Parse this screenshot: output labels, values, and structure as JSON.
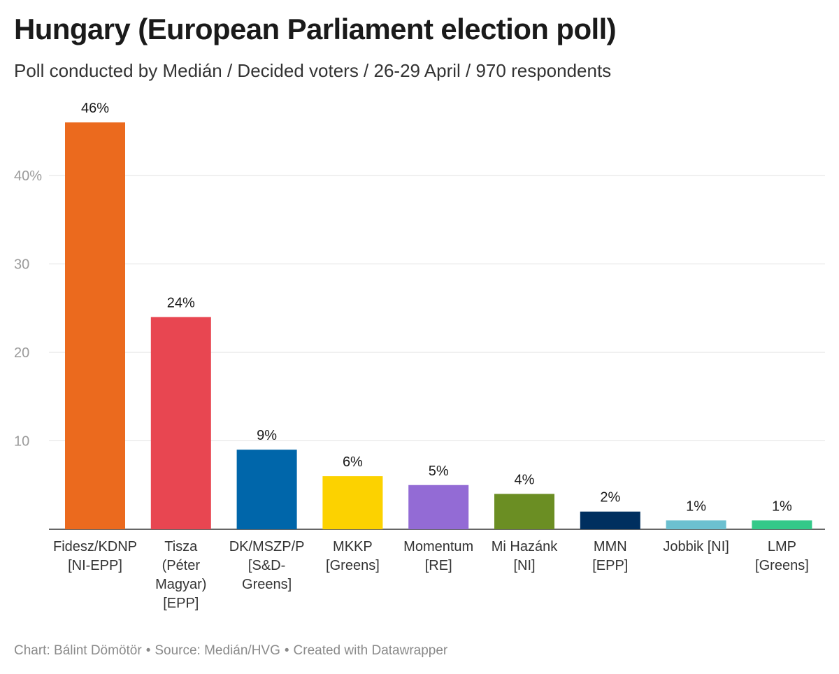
{
  "chart_data": {
    "type": "bar",
    "title": "Hungary (European Parliament election poll)",
    "subtitle": "Poll conducted by Medián / Decided voters / 26-29 April / 970 respondents",
    "categories": [
      [
        "Fidesz/KDNP",
        "[NI-EPP]"
      ],
      [
        "Tisza",
        "(Péter",
        "Magyar)",
        "[EPP]"
      ],
      [
        "DK/MSZP/P",
        "[S&D-",
        "Greens]"
      ],
      [
        "MKKP",
        "[Greens]"
      ],
      [
        "Momentum",
        "[RE]"
      ],
      [
        "Mi Hazánk",
        "[NI]"
      ],
      [
        "MMN",
        "[EPP]"
      ],
      [
        "Jobbik [NI]"
      ],
      [
        "LMP",
        "[Greens]"
      ]
    ],
    "values": [
      46,
      24,
      9,
      6,
      5,
      4,
      2,
      1,
      1
    ],
    "value_labels": [
      "46%",
      "24%",
      "9%",
      "6%",
      "5%",
      "4%",
      "2%",
      "1%",
      "1%"
    ],
    "colors": [
      "#eb6a1e",
      "#e84651",
      "#0066aa",
      "#fcd200",
      "#936bd5",
      "#6b8e23",
      "#002f5f",
      "#6cc0d0",
      "#34c989"
    ],
    "ylim": [
      0,
      46
    ],
    "yticks": [
      10,
      20,
      30,
      40
    ],
    "ytick_labels": [
      "10",
      "20",
      "30",
      "40%"
    ],
    "grid": true,
    "xlabel": "",
    "ylabel": ""
  },
  "footer": {
    "chart_credit": "Chart: Bálint Dömötör",
    "source": "Source: Medián/HVG",
    "created_with": "Created with Datawrapper",
    "separator": "•"
  }
}
